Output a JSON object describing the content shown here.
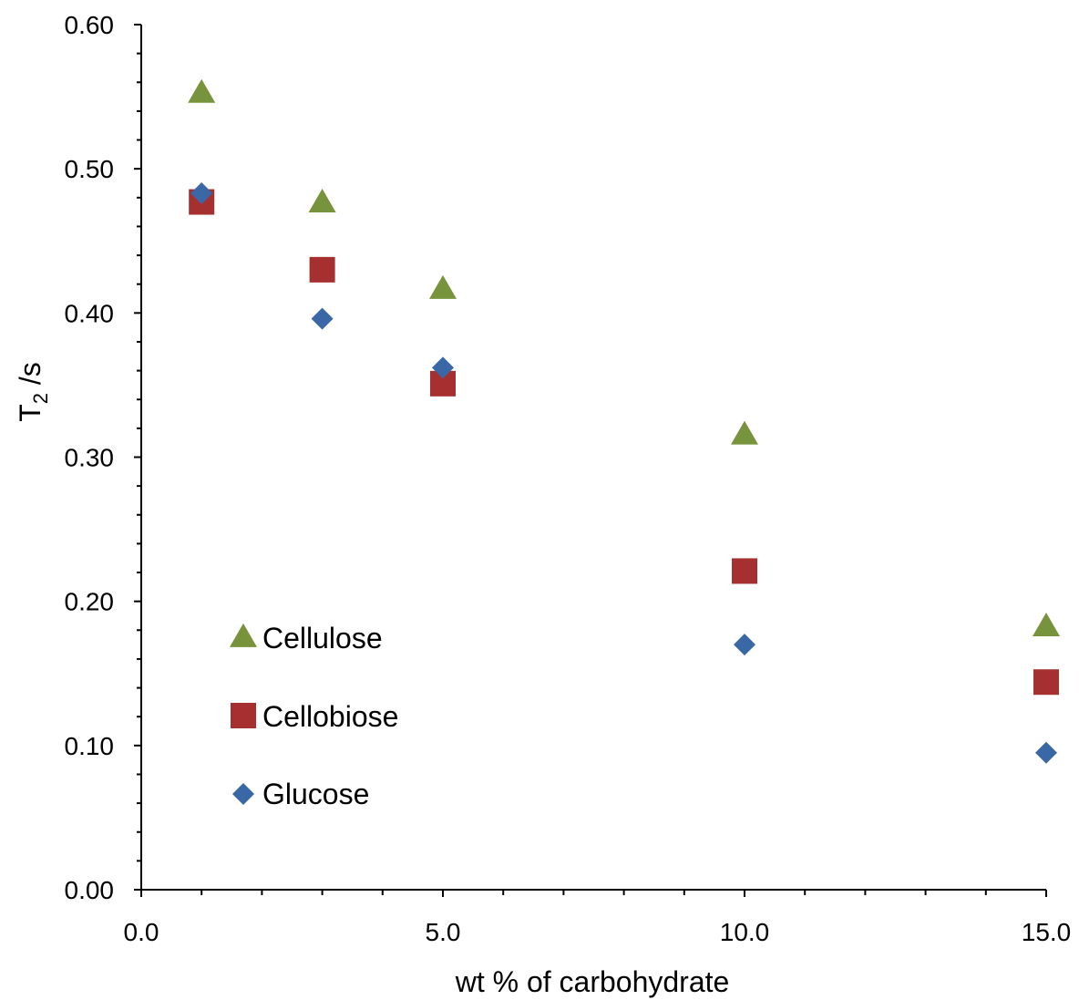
{
  "chart_data": {
    "type": "scatter",
    "title": "",
    "xlabel": "wt % of carbohydrate",
    "ylabel": {
      "main": "T",
      "sub": "2",
      "rest": " /s"
    },
    "xlim": [
      0,
      15
    ],
    "ylim": [
      0,
      0.6
    ],
    "x_major_ticks": [
      0,
      5,
      10,
      15
    ],
    "x_minor_step": 1,
    "x_tick_labels": [
      "0.0",
      "5.0",
      "10.0",
      "15.0"
    ],
    "y_major_ticks": [
      0,
      0.1,
      0.2,
      0.3,
      0.4,
      0.5,
      0.6
    ],
    "y_minor_step": 0.02,
    "y_tick_labels": [
      "0.00",
      "0.10",
      "0.20",
      "0.30",
      "0.40",
      "0.50",
      "0.60"
    ],
    "grid": false,
    "legend": "inside-lower-left",
    "series": [
      {
        "name": "Cellulose",
        "marker": "triangle",
        "color": "#77933C",
        "x": [
          1,
          3,
          5,
          10,
          15
        ],
        "y": [
          0.552,
          0.476,
          0.416,
          0.315,
          0.182
        ]
      },
      {
        "name": "Cellobiose",
        "marker": "square",
        "color": "#A5302F",
        "x": [
          1,
          3,
          5,
          10,
          15
        ],
        "y": [
          0.477,
          0.43,
          0.351,
          0.221,
          0.144
        ]
      },
      {
        "name": "Glucose",
        "marker": "diamond",
        "color": "#3A67A6",
        "x": [
          1,
          3,
          5,
          10,
          15
        ],
        "y": [
          0.483,
          0.396,
          0.362,
          0.17,
          0.095
        ]
      }
    ]
  }
}
